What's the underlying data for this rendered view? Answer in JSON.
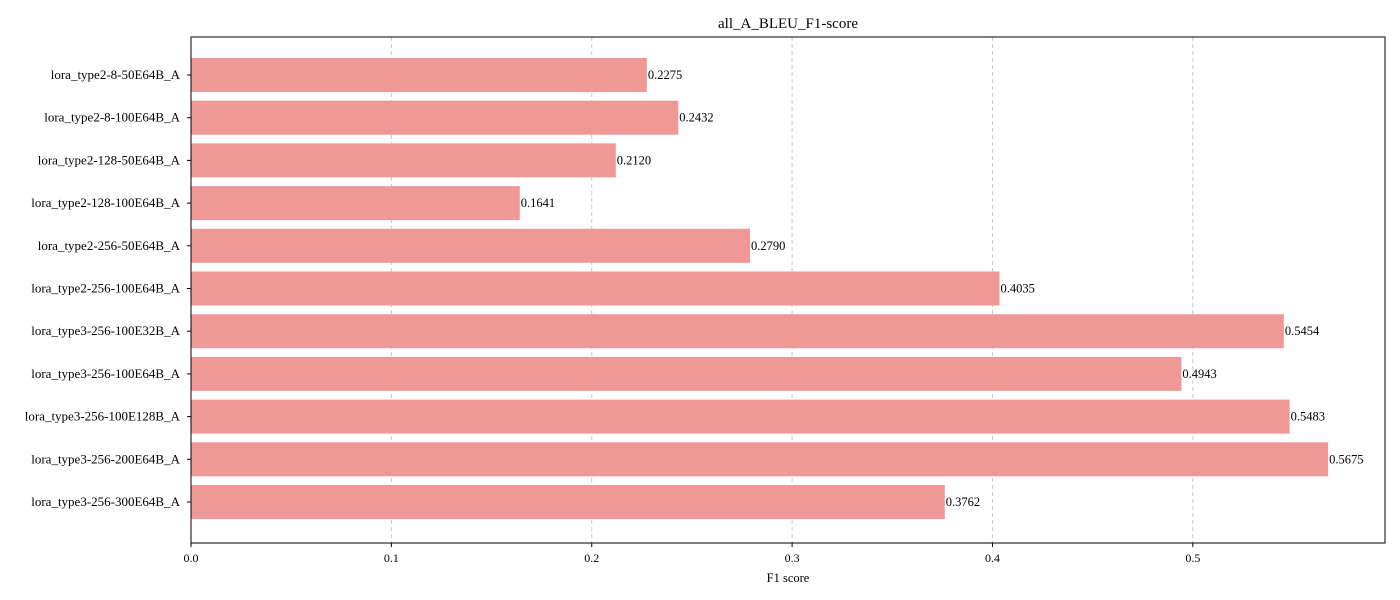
{
  "chart_data": {
    "type": "bar",
    "orientation": "horizontal",
    "title": "all_A_BLEU_F1-score",
    "xlabel": "F1 score",
    "ylabel": "",
    "categories": [
      "lora_type2-8-50E64B_A",
      "lora_type2-8-100E64B_A",
      "lora_type2-128-50E64B_A",
      "lora_type2-128-100E64B_A",
      "lora_type2-256-50E64B_A",
      "lora_type2-256-100E64B_A",
      "lora_type3-256-100E32B_A",
      "lora_type3-256-100E64B_A",
      "lora_type3-256-100E128B_A",
      "lora_type3-256-200E64B_A",
      "lora_type3-256-300E64B_A"
    ],
    "values": [
      0.2275,
      0.2432,
      0.212,
      0.1641,
      0.279,
      0.4035,
      0.5454,
      0.4943,
      0.5483,
      0.5675,
      0.3762
    ],
    "value_labels": [
      "0.2275",
      "0.2432",
      "0.2120",
      "0.1641",
      "0.2790",
      "0.4035",
      "0.5454",
      "0.4943",
      "0.5483",
      "0.5675",
      "0.3762"
    ],
    "xlim": [
      0,
      0.5959
    ],
    "xticks": [
      0.0,
      0.1,
      0.2,
      0.3,
      0.4,
      0.5
    ],
    "xtick_labels": [
      "0.0",
      "0.1",
      "0.2",
      "0.3",
      "0.4",
      "0.5"
    ],
    "grid": "x-dashed",
    "legend": "none",
    "colors": {
      "bar": "#f09896",
      "grid": "#c8c8c8",
      "axis": "#000000",
      "text": "#000000"
    }
  }
}
